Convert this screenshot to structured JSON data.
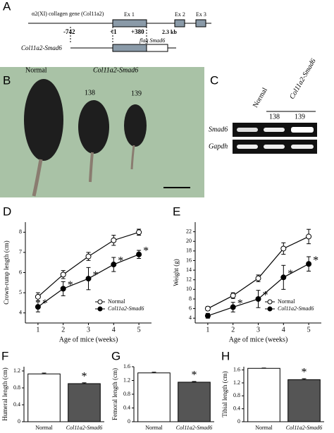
{
  "panel_a": {
    "label": "A",
    "gene": "α2(XI) collagen gene (Col11a2)",
    "ex1": "Ex 1",
    "ex2": "Ex 2",
    "ex3": "Ex 3",
    "pos_742": "-742",
    "pos_1": "+1",
    "pos_380": "+380",
    "size": "2.3 kb",
    "construct": "Col11a2-Smad6",
    "insert": "flag Smad6"
  },
  "panel_b": {
    "label": "B",
    "normal": "Normal",
    "transgenic": "Col11a2-Smad6",
    "line1": "138",
    "line2": "139"
  },
  "panel_c": {
    "label": "C",
    "lanes": [
      "Normal",
      "138",
      "139"
    ],
    "group": "Col11a2-Smad6",
    "rows": [
      "Smad6",
      "Gapdh"
    ]
  },
  "chart_data": [
    {
      "type": "line",
      "panel_label": "D",
      "x": [
        1,
        2,
        3,
        4,
        5
      ],
      "xlim": [
        0.5,
        5.5
      ],
      "xticks": [
        1,
        2,
        3,
        4,
        5
      ],
      "ylim": [
        3.5,
        8.5
      ],
      "yticks": [
        4,
        5,
        6,
        7,
        8
      ],
      "xlabel": "Age of mice (weeks)",
      "ylabel": "Crown-rump length (cm)",
      "legend": "lower right",
      "series": [
        {
          "name": "Normal",
          "color": "#000000",
          "marker": "open",
          "values": [
            4.8,
            5.9,
            6.8,
            7.6,
            8.0
          ],
          "errors": [
            0.2,
            0.2,
            0.2,
            0.25,
            0.15
          ]
        },
        {
          "name": "Col11a2-Smad6",
          "color": "#000000",
          "marker": "filled",
          "values": [
            4.3,
            5.2,
            5.7,
            6.4,
            6.9
          ],
          "errors": [
            0.25,
            0.35,
            0.55,
            0.35,
            0.2
          ],
          "significance": [
            "*",
            "*",
            "*",
            "*",
            "*"
          ]
        }
      ]
    },
    {
      "type": "line",
      "panel_label": "E",
      "x": [
        1,
        2,
        3,
        4,
        5
      ],
      "xlim": [
        0.5,
        5.5
      ],
      "xticks": [
        1,
        2,
        3,
        4,
        5
      ],
      "ylim": [
        3,
        24
      ],
      "yticks": [
        4,
        6,
        8,
        10,
        12,
        14,
        16,
        18,
        20,
        22
      ],
      "xlabel": "Age of mice (weeks)",
      "ylabel": "Weight (g)",
      "legend": "lower right",
      "series": [
        {
          "name": "Normal",
          "color": "#000000",
          "marker": "open",
          "values": [
            6,
            8.7,
            12.3,
            18.5,
            21
          ],
          "errors": [
            0.4,
            0.6,
            0.7,
            1.2,
            1.5
          ]
        },
        {
          "name": "Col11a2-Smad6",
          "color": "#000000",
          "marker": "filled",
          "values": [
            4.5,
            6.3,
            8,
            12.5,
            15.3
          ],
          "errors": [
            0.5,
            1,
            1.8,
            2.5,
            1.5
          ],
          "significance": [
            null,
            "*",
            "*",
            "*",
            "*"
          ]
        }
      ]
    },
    {
      "type": "bar",
      "panel_label": "F",
      "categories": [
        "Normal",
        "Col11a2-Smad6"
      ],
      "values": [
        1.13,
        0.9
      ],
      "errors": [
        0.02,
        0.02
      ],
      "colors": [
        "#ffffff",
        "#555555"
      ],
      "ylim": [
        0,
        1.3
      ],
      "yticks": [
        0,
        0.4,
        0.8,
        1.2
      ],
      "ylabel": "Humeral length (cm)",
      "significance": [
        null,
        "*"
      ]
    },
    {
      "type": "bar",
      "panel_label": "G",
      "categories": [
        "Normal",
        "Col11a2-Smad6"
      ],
      "values": [
        1.42,
        1.15
      ],
      "errors": [
        0.02,
        0.02
      ],
      "colors": [
        "#ffffff",
        "#555555"
      ],
      "ylim": [
        0,
        1.6
      ],
      "yticks": [
        0,
        0.4,
        0.8,
        1.2,
        1.6
      ],
      "ylabel": "Femoral length (cm)",
      "significance": [
        null,
        "*"
      ]
    },
    {
      "type": "bar",
      "panel_label": "H",
      "categories": [
        "Normal",
        "Col11a2-Smad6"
      ],
      "values": [
        1.65,
        1.3
      ],
      "errors": [
        0.01,
        0.03
      ],
      "colors": [
        "#ffffff",
        "#555555"
      ],
      "ylim": [
        0,
        1.7
      ],
      "yticks": [
        0,
        0.4,
        0.8,
        1.2,
        1.6
      ],
      "ylabel": "Tibial length (cm)",
      "significance": [
        null,
        "*"
      ]
    }
  ]
}
